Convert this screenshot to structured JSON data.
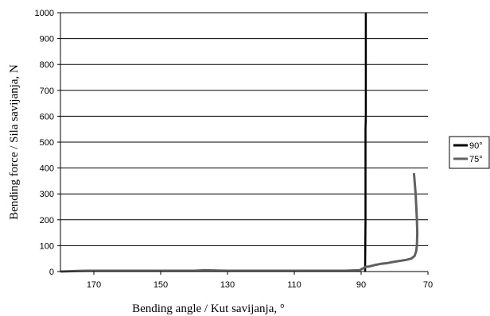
{
  "chart_data": {
    "type": "line",
    "xlabel": "Bending angle / Kut savijanja, °",
    "ylabel": "Bending force / Sila savijanja, N",
    "xlim": [
      180,
      70
    ],
    "ylim": [
      0,
      1000
    ],
    "x_ticks": [
      170,
      150,
      130,
      110,
      90,
      70
    ],
    "y_ticks": [
      0,
      100,
      200,
      300,
      400,
      500,
      600,
      700,
      800,
      900,
      1000
    ],
    "grid": "horizontal",
    "legend_position": "right",
    "series": [
      {
        "name": "90°",
        "color": "#000000",
        "points": [
          [
            88.8,
            0
          ],
          [
            88.8,
            10
          ],
          [
            88.7,
            200
          ],
          [
            88.7,
            550
          ],
          [
            88.6,
            600
          ],
          [
            88.6,
            1000
          ]
        ]
      },
      {
        "name": "75°",
        "color": "#606060",
        "points": [
          [
            180,
            0
          ],
          [
            175,
            2
          ],
          [
            172,
            3
          ],
          [
            160,
            3
          ],
          [
            140,
            3
          ],
          [
            137,
            5
          ],
          [
            130,
            3
          ],
          [
            110,
            3
          ],
          [
            95,
            3
          ],
          [
            90.5,
            5
          ],
          [
            89.5,
            12
          ],
          [
            88.5,
            18
          ],
          [
            87.5,
            20
          ],
          [
            86,
            25
          ],
          [
            84,
            30
          ],
          [
            82,
            33
          ],
          [
            80,
            38
          ],
          [
            78,
            42
          ],
          [
            76.5,
            45
          ],
          [
            75,
            50
          ],
          [
            74,
            60
          ],
          [
            73.5,
            80
          ],
          [
            73.3,
            100
          ],
          [
            73.2,
            150
          ],
          [
            73.3,
            200
          ],
          [
            73.5,
            250
          ],
          [
            73.7,
            300
          ],
          [
            74,
            350
          ],
          [
            74.2,
            380
          ]
        ]
      }
    ]
  }
}
